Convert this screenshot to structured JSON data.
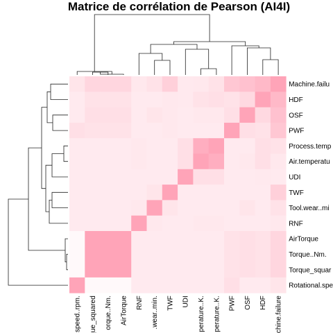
{
  "chart_data": {
    "type": "heatmap",
    "title": "Matrice de corrélation de Pearson (AI4I)",
    "row_labels": [
      "Machine.failure",
      "HDF",
      "OSF",
      "PWF",
      "Process.temperature..K.",
      "Air.temperature..K.",
      "UDI",
      "TWF",
      "Tool.wear..min.",
      "RNF",
      "AirTorque",
      "Torque..Nm.",
      "Torque_squared",
      "Rotational.speed..rpm."
    ],
    "row_labels_display": [
      "Machine.failu",
      "HDF",
      "OSF",
      "PWF",
      "Process.temp",
      "Air.temperatu",
      "UDI",
      "TWF",
      "Tool.wear..mi",
      "RNF",
      "AirTorque",
      "Torque..Nm.",
      "Torque_squar",
      "Rotational.spe"
    ],
    "col_labels": [
      "Rotational.speed..rpm.",
      "Torque_squared",
      "Torque..Nm.",
      "AirTorque",
      "RNF",
      "Tool.wear..min.",
      "TWF",
      "UDI",
      "Air.temperature..K.",
      "Process.temperature..K.",
      "PWF",
      "OSF",
      "HDF",
      "Machine.failure"
    ],
    "col_labels_display": [
      "speed..rpm.",
      "rque_squared",
      "orque..Nm.",
      "AirTorque",
      "RNF",
      ".wear..min.",
      "TWF",
      "UDI",
      "perature..K.",
      "perature..K.",
      "PWF",
      "OSF",
      "HDF",
      "achine.failure"
    ],
    "intensity": [
      [
        0.18,
        0.28,
        0.28,
        0.28,
        0.16,
        0.2,
        0.32,
        0.15,
        0.16,
        0.2,
        0.38,
        0.42,
        0.48,
        0.62
      ],
      [
        0.14,
        0.2,
        0.2,
        0.2,
        0.14,
        0.14,
        0.16,
        0.15,
        0.2,
        0.22,
        0.2,
        0.26,
        0.7,
        0.48
      ],
      [
        0.14,
        0.22,
        0.22,
        0.22,
        0.14,
        0.18,
        0.16,
        0.14,
        0.16,
        0.16,
        0.22,
        0.62,
        0.26,
        0.42
      ],
      [
        0.22,
        0.2,
        0.2,
        0.2,
        0.14,
        0.14,
        0.16,
        0.14,
        0.14,
        0.14,
        0.62,
        0.22,
        0.2,
        0.38
      ],
      [
        0.14,
        0.14,
        0.14,
        0.14,
        0.16,
        0.14,
        0.14,
        0.22,
        0.55,
        0.62,
        0.14,
        0.14,
        0.22,
        0.2
      ],
      [
        0.14,
        0.14,
        0.14,
        0.14,
        0.16,
        0.14,
        0.14,
        0.22,
        0.62,
        0.55,
        0.14,
        0.16,
        0.22,
        0.16
      ],
      [
        0.14,
        0.14,
        0.14,
        0.14,
        0.14,
        0.14,
        0.14,
        0.62,
        0.22,
        0.22,
        0.14,
        0.14,
        0.15,
        0.14
      ],
      [
        0.14,
        0.14,
        0.14,
        0.14,
        0.14,
        0.18,
        0.62,
        0.14,
        0.14,
        0.14,
        0.14,
        0.14,
        0.14,
        0.32
      ],
      [
        0.14,
        0.14,
        0.14,
        0.14,
        0.16,
        0.62,
        0.18,
        0.14,
        0.14,
        0.14,
        0.14,
        0.18,
        0.14,
        0.2
      ],
      [
        0.14,
        0.14,
        0.14,
        0.14,
        0.62,
        0.16,
        0.14,
        0.14,
        0.16,
        0.16,
        0.14,
        0.14,
        0.14,
        0.16
      ],
      [
        0.04,
        0.62,
        0.62,
        0.62,
        0.14,
        0.14,
        0.14,
        0.14,
        0.14,
        0.14,
        0.2,
        0.22,
        0.2,
        0.28
      ],
      [
        0.04,
        0.62,
        0.62,
        0.62,
        0.14,
        0.14,
        0.14,
        0.14,
        0.14,
        0.14,
        0.2,
        0.22,
        0.2,
        0.28
      ],
      [
        0.04,
        0.62,
        0.62,
        0.62,
        0.14,
        0.14,
        0.14,
        0.14,
        0.14,
        0.14,
        0.2,
        0.22,
        0.2,
        0.28
      ],
      [
        0.62,
        0.04,
        0.04,
        0.04,
        0.14,
        0.14,
        0.14,
        0.14,
        0.14,
        0.14,
        0.22,
        0.14,
        0.14,
        0.18
      ]
    ],
    "colors": {
      "low": "#ffffff",
      "high": "#ffa4b8",
      "dendrogram": "#222222"
    },
    "legend": "none",
    "grid": false
  }
}
